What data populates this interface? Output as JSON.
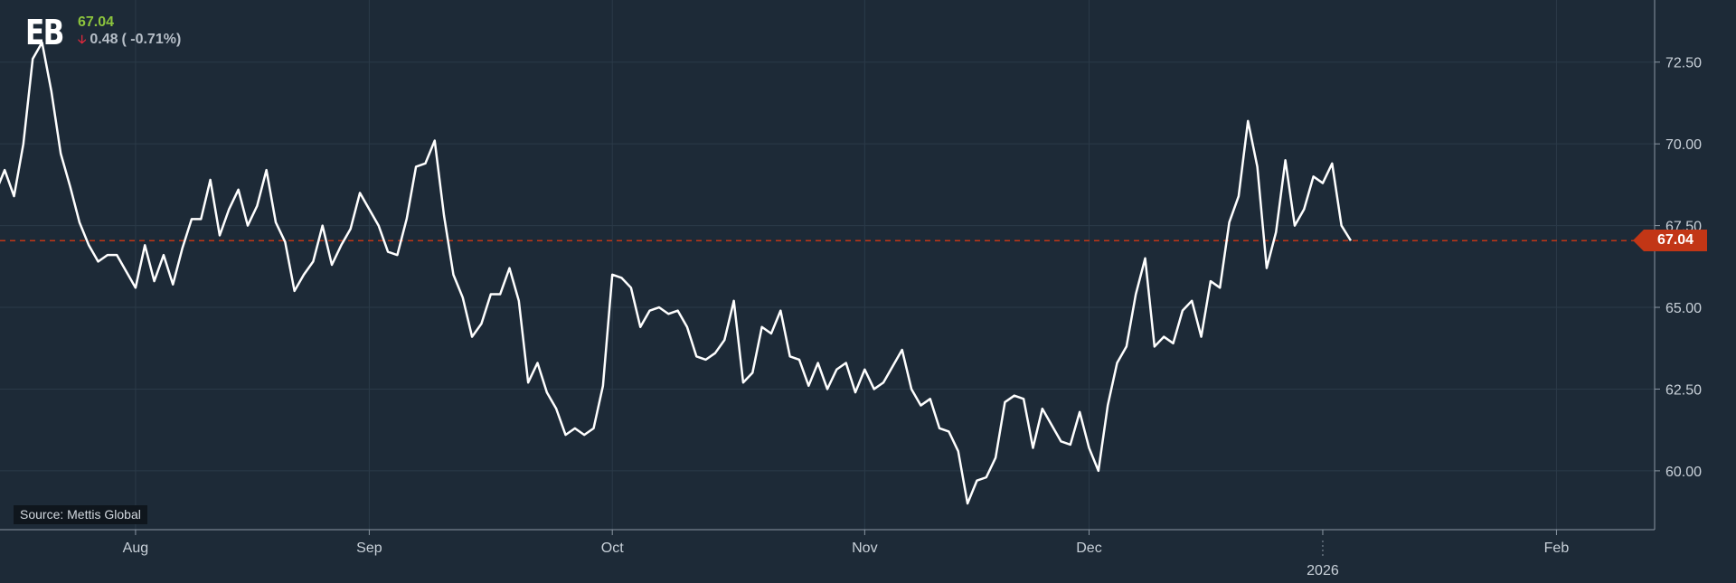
{
  "header": {
    "ticker": "EB",
    "price": "67.04",
    "change_icon": "down-arrow-icon",
    "change": "0.48",
    "change_pct": "( -0.71%)"
  },
  "source": "Source: Mettis Global",
  "last_price_label": "67.04",
  "colors": {
    "background": "#1d2a37",
    "line": "#ffffff",
    "last_price": "#c23616",
    "up": "#8cc43d",
    "down": "#e0283c"
  },
  "chart_data": {
    "type": "line",
    "title": "",
    "xlabel": "",
    "ylabel": "",
    "ylim": [
      58.2,
      74.4
    ],
    "y_ticks": [
      "60.00",
      "62.50",
      "65.00",
      "67.50",
      "70.00",
      "72.50"
    ],
    "y_tick_values": [
      60,
      62.5,
      65,
      67.5,
      70,
      72.5
    ],
    "x_ticks": [
      {
        "label": "Aug",
        "x": 21
      },
      {
        "label": "Sep",
        "x": 46
      },
      {
        "label": "Oct",
        "x": 72
      },
      {
        "label": "Nov",
        "x": 99
      },
      {
        "label": "Dec",
        "x": 123
      },
      {
        "label": "2026",
        "x": 148
      },
      {
        "label": "Feb",
        "x": 173
      }
    ],
    "x_range": [
      6.5,
      183.5
    ],
    "grid": true,
    "last_price": 67.04,
    "values": [
      68.8,
      68.5,
      69.5,
      69.3,
      69.2,
      68.6,
      68.5,
      69.2,
      68.4,
      70.0,
      72.6,
      73.1,
      71.6,
      69.7,
      68.7,
      67.6,
      66.9,
      66.4,
      66.6,
      66.6,
      66.1,
      65.6,
      66.9,
      65.8,
      66.6,
      65.7,
      66.8,
      67.7,
      67.7,
      68.9,
      67.2,
      68.0,
      68.6,
      67.5,
      68.1,
      69.2,
      67.6,
      67.0,
      65.5,
      66.0,
      66.4,
      67.5,
      66.3,
      66.9,
      67.4,
      68.5,
      68.0,
      67.5,
      66.7,
      66.6,
      67.7,
      69.3,
      69.4,
      70.1,
      67.8,
      66.0,
      65.3,
      64.1,
      64.5,
      65.4,
      65.4,
      66.2,
      65.2,
      62.7,
      63.3,
      62.4,
      61.9,
      61.1,
      61.3,
      61.1,
      61.3,
      62.6,
      66.0,
      65.9,
      65.6,
      64.4,
      64.9,
      65.0,
      64.8,
      64.9,
      64.4,
      63.5,
      63.4,
      63.6,
      64.0,
      65.2,
      62.7,
      63.0,
      64.4,
      64.2,
      64.9,
      63.5,
      63.4,
      62.6,
      63.3,
      62.5,
      63.1,
      63.3,
      62.4,
      63.1,
      62.5,
      62.7,
      63.2,
      63.7,
      62.5,
      62.0,
      62.2,
      61.3,
      61.2,
      60.6,
      59.0,
      59.7,
      59.8,
      60.4,
      62.1,
      62.3,
      62.2,
      60.7,
      61.9,
      61.4,
      60.9,
      60.8,
      61.8,
      60.7,
      60.0,
      62.0,
      63.3,
      63.8,
      65.4,
      66.5,
      63.8,
      64.1,
      63.9,
      64.9,
      65.2,
      64.1,
      65.8,
      65.6,
      67.6,
      68.4,
      70.7,
      69.3,
      66.2,
      67.3,
      69.5,
      67.5,
      68.0,
      69.0,
      68.8,
      69.4,
      67.5,
      67.04
    ]
  }
}
